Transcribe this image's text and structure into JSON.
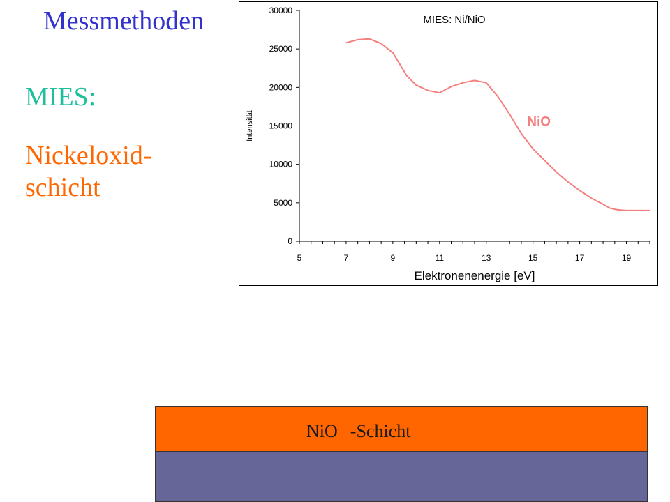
{
  "slide": {
    "title": "Messmethoden",
    "method": "MIES:",
    "layer_line1": "Nickeloxid-",
    "layer_line2": "schicht"
  },
  "layers": {
    "top_label_material": "NiO",
    "top_label_suffix": "-Schicht",
    "top_color": "#ff6600",
    "substrate_color": "#666699"
  },
  "colors": {
    "title": "#3333cc",
    "method": "#1fbf9c",
    "layer_text": "#ff6600",
    "curve": "#f47f7f"
  },
  "chart_data": {
    "type": "line",
    "title": "MIES: Ni/NiO",
    "xlabel": "Elektronenenergie [eV]",
    "ylabel": "Intensität",
    "xlim": [
      5,
      20
    ],
    "ylim": [
      0,
      30000
    ],
    "x_tick_labels": [
      "5",
      "7",
      "9",
      "11",
      "13",
      "15",
      "17",
      "19"
    ],
    "y_tick_labels": [
      "0",
      "5000",
      "10000",
      "15000",
      "20000",
      "25000",
      "30000"
    ],
    "grid": false,
    "legend": "none",
    "series": [
      {
        "name": "NiO",
        "color": "#f47f7f",
        "x": [
          7.0,
          7.5,
          8.0,
          8.5,
          9.0,
          9.3,
          9.6,
          10.0,
          10.5,
          11.0,
          11.5,
          12.0,
          12.5,
          13.0,
          13.5,
          14.0,
          14.5,
          15.0,
          15.5,
          16.0,
          16.5,
          17.0,
          17.5,
          18.0,
          18.3,
          18.6,
          19.0,
          19.5,
          20.0
        ],
        "y": [
          25800,
          26200,
          26300,
          25700,
          24500,
          23000,
          21500,
          20300,
          19600,
          19300,
          20100,
          20600,
          20900,
          20600,
          18800,
          16500,
          14000,
          12000,
          10500,
          9000,
          7700,
          6600,
          5600,
          4800,
          4300,
          4100,
          4000,
          4000,
          4000
        ]
      }
    ]
  }
}
